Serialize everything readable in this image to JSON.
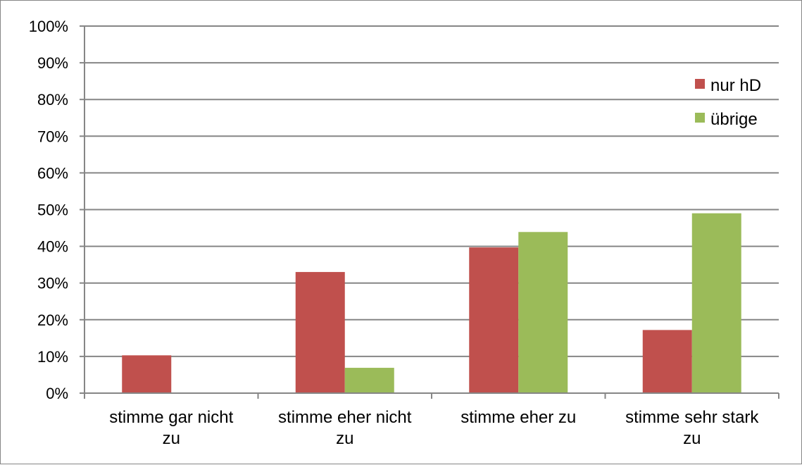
{
  "chart_data": {
    "type": "bar",
    "categories": [
      [
        "stimme gar nicht",
        "zu"
      ],
      [
        "stimme eher nicht",
        "zu"
      ],
      [
        "stimme eher zu"
      ],
      [
        "stimme sehr stark",
        "zu"
      ]
    ],
    "series": [
      {
        "name": "nur hD",
        "color": "#c0504d",
        "values": [
          10.3,
          33,
          39.7,
          17.2
        ]
      },
      {
        "name": "übrige",
        "color": "#9bbb59",
        "values": [
          0,
          6.9,
          43.9,
          49
        ]
      }
    ],
    "y_ticks": [
      "0%",
      "10%",
      "20%",
      "30%",
      "40%",
      "50%",
      "60%",
      "70%",
      "80%",
      "90%",
      "100%"
    ],
    "ylim": [
      0,
      100
    ],
    "grid": true,
    "grid_color": "#868686",
    "legend_position": "top-right",
    "title": "",
    "xlabel": "",
    "ylabel": ""
  }
}
